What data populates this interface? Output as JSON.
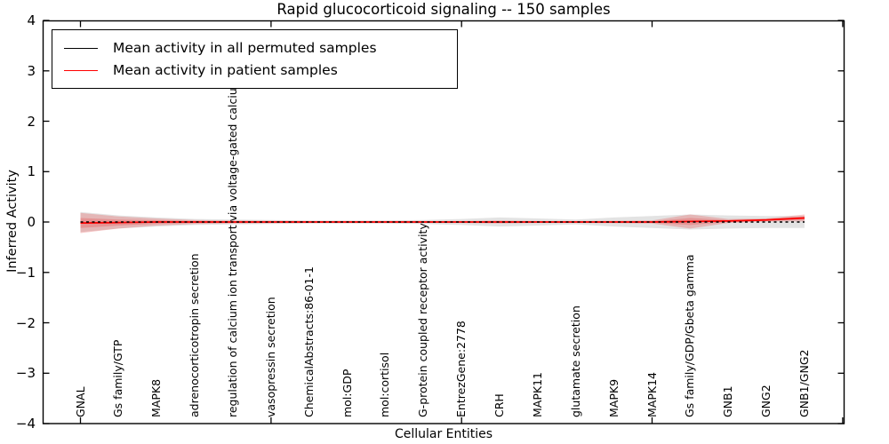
{
  "title": "Rapid glucocorticoid signaling -- 150 samples",
  "legend": {
    "permuted": "Mean activity in all permuted samples",
    "patient": "Mean activity in patient samples"
  },
  "chart_data": {
    "type": "line",
    "title": "Rapid glucocorticoid signaling -- 150 samples",
    "xlabel": "Cellular Entities",
    "ylabel": "Inferred Activity",
    "ylim": [
      -4,
      4
    ],
    "xlim": [
      -1,
      20.05
    ],
    "grid": false,
    "legend_position": "upper left",
    "yticks": [
      -4,
      -3,
      -2,
      -1,
      0,
      1,
      2,
      3,
      4
    ],
    "yticklabels": [
      "−4",
      "−3",
      "−2",
      "−1",
      "0",
      "1",
      "2",
      "3",
      "4"
    ],
    "xticks_values": [
      0,
      5,
      10,
      15,
      20
    ],
    "categories": [
      "GNAL",
      "Gs family/GTP",
      "MAPK8",
      "adrenocorticotropin secretion",
      "regulation of calcium ion transport via voltage-gated calcium channel",
      "vasopressin secretion",
      "ChemicalAbstracts:86-01-1",
      "mol:GDP",
      "mol:cortisol",
      "G-protein coupled receptor activity",
      "EntrezGene:2778",
      "CRH",
      "MAPK11",
      "glutamate secretion",
      "MAPK9",
      "MAPK14",
      "Gs family/GDP/Gbeta gamma",
      "GNB1",
      "GNG2",
      "GNB1/GNG2"
    ],
    "series": [
      {
        "name": "Mean activity in all permuted samples",
        "color": "#000000",
        "line_style": "dashed",
        "band_color": "rgba(128,128,128,0.22)",
        "mean": [
          0,
          0,
          0,
          0,
          0,
          0,
          0,
          0,
          0,
          0,
          0,
          0,
          0,
          0,
          0,
          0,
          0,
          0,
          0,
          0
        ],
        "band_halfwidth": [
          0.2,
          0.13,
          0.09,
          0.06,
          0.05,
          0.04,
          0.03,
          0.03,
          0.03,
          0.04,
          0.06,
          0.09,
          0.07,
          0.05,
          0.09,
          0.12,
          0.15,
          0.13,
          0.12,
          0.12
        ]
      },
      {
        "name": "Mean activity in patient samples",
        "color": "#ff0000",
        "line_style": "solid",
        "band_color": "rgba(231,47,47,0.25)",
        "mean": [
          -0.02,
          -0.01,
          0,
          0,
          0,
          0,
          0,
          0,
          0,
          0,
          0,
          0,
          0,
          0,
          0,
          0,
          0.01,
          0.02,
          0.04,
          0.08
        ],
        "band_halfwidth": [
          0.2,
          0.12,
          0.07,
          0.04,
          0.03,
          0.025,
          0.02,
          0.02,
          0.02,
          0.02,
          0.02,
          0.03,
          0.02,
          0.02,
          0.025,
          0.03,
          0.14,
          0.04,
          0.03,
          0.07
        ]
      }
    ]
  }
}
